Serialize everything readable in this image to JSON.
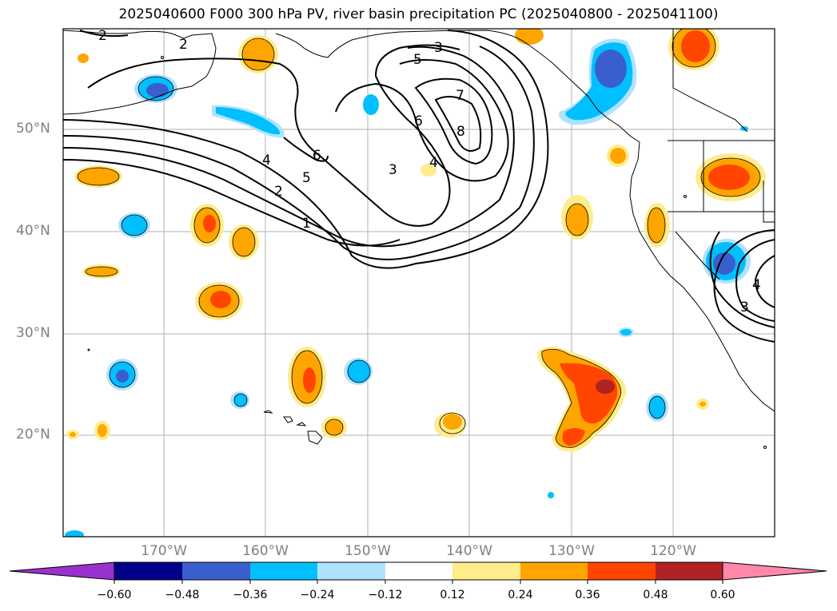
{
  "title": "2025040600 F000 300 hPa PV, river basin precipitation PC (2025040800 - 2025041100)",
  "axes": {
    "lat_labels": [
      "50°N",
      "40°N",
      "30°N",
      "20°N"
    ],
    "lon_labels": [
      "170°W",
      "160°W",
      "150°W",
      "140°W",
      "130°W",
      "120°W"
    ]
  },
  "colorbar": {
    "ticks": [
      "−0.60",
      "−0.48",
      "−0.36",
      "−0.24",
      "−0.12",
      "0.12",
      "0.24",
      "0.36",
      "0.48",
      "0.60"
    ],
    "colors": [
      "#9932cc",
      "#00008b",
      "#3a5fcd",
      "#00bfff",
      "#b0e2ff",
      "#ffffff",
      "#ffec8b",
      "#ffa500",
      "#ff4500",
      "#b22222",
      "#ff88aa"
    ]
  },
  "pv_contour_labels": [
    "1",
    "2",
    "2",
    "3",
    "3",
    "4",
    "4",
    "5",
    "5",
    "6",
    "6",
    "7",
    "8",
    "2",
    "3",
    "4"
  ]
}
